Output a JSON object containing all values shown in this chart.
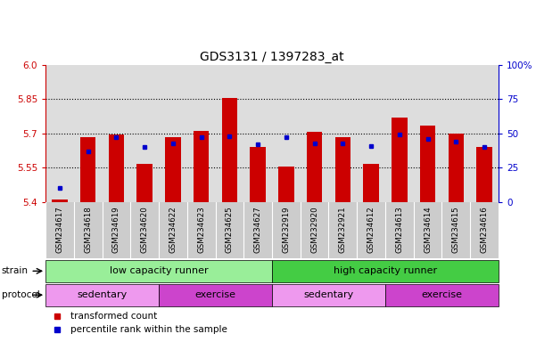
{
  "title": "GDS3131 / 1397283_at",
  "samples": [
    "GSM234617",
    "GSM234618",
    "GSM234619",
    "GSM234620",
    "GSM234622",
    "GSM234623",
    "GSM234625",
    "GSM234627",
    "GSM232919",
    "GSM232920",
    "GSM232921",
    "GSM234612",
    "GSM234613",
    "GSM234614",
    "GSM234615",
    "GSM234616"
  ],
  "bar_values": [
    5.41,
    5.685,
    5.695,
    5.565,
    5.685,
    5.71,
    5.855,
    5.64,
    5.555,
    5.705,
    5.685,
    5.565,
    5.77,
    5.735,
    5.7,
    5.64
  ],
  "percentile_values": [
    10,
    37,
    47,
    40,
    43,
    47,
    48,
    42,
    47,
    43,
    43,
    41,
    49,
    46,
    44,
    40
  ],
  "ylim_left": [
    5.4,
    6.0
  ],
  "ylim_right": [
    0,
    100
  ],
  "yticks_left": [
    5.4,
    5.55,
    5.7,
    5.85,
    6.0
  ],
  "yticks_right": [
    0,
    25,
    50,
    75,
    100
  ],
  "bar_color": "#cc0000",
  "dot_color": "#0000cc",
  "bar_bottom": 5.4,
  "strain_groups": [
    {
      "label": "low capacity runner",
      "start": 0,
      "end": 8,
      "color": "#99ee99"
    },
    {
      "label": "high capacity runner",
      "start": 8,
      "end": 16,
      "color": "#44cc44"
    }
  ],
  "protocol_groups": [
    {
      "label": "sedentary",
      "start": 0,
      "end": 4,
      "color": "#ee99ee"
    },
    {
      "label": "exercise",
      "start": 4,
      "end": 8,
      "color": "#cc44cc"
    },
    {
      "label": "sedentary",
      "start": 8,
      "end": 12,
      "color": "#ee99ee"
    },
    {
      "label": "exercise",
      "start": 12,
      "end": 16,
      "color": "#cc44cc"
    }
  ],
  "legend_items": [
    {
      "label": "transformed count",
      "color": "#cc0000"
    },
    {
      "label": "percentile rank within the sample",
      "color": "#0000cc"
    }
  ],
  "background_color": "#ffffff",
  "plot_bg_color": "#dddddd",
  "xtick_bg_color": "#cccccc"
}
